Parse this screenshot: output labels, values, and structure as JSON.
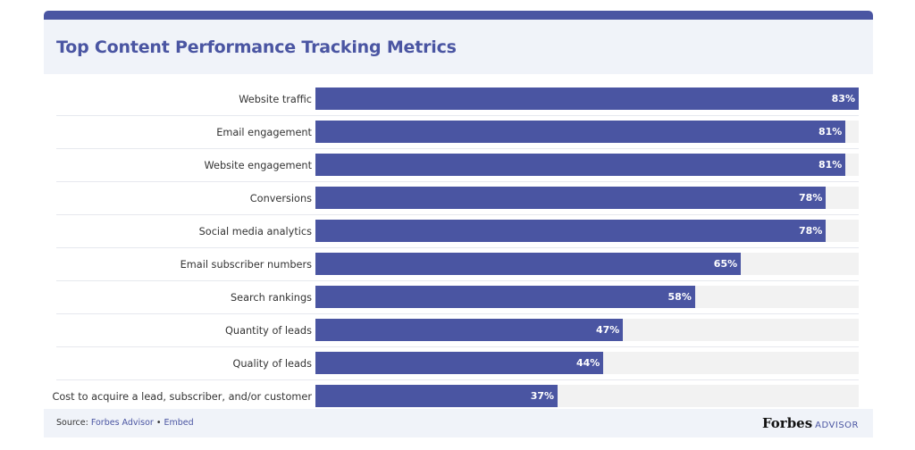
{
  "header": {
    "title": "Top Content Performance Tracking Metrics"
  },
  "colors": {
    "bar": "#4a55a2",
    "track": "#f2f2f2",
    "header_bg": "#f0f3f9",
    "title": "#4a55a2"
  },
  "chart_data": {
    "type": "bar",
    "orientation": "horizontal",
    "title": "Top Content Performance Tracking Metrics",
    "xlim": [
      0,
      83
    ],
    "categories": [
      "Website traffic",
      "Email engagement",
      "Website engagement",
      "Conversions",
      "Social media analytics",
      "Email subscriber numbers",
      "Search rankings",
      "Quantity of leads",
      "Quality of leads",
      "Cost to acquire a lead, subscriber, and/or customer"
    ],
    "values": [
      83,
      81,
      81,
      78,
      78,
      65,
      58,
      47,
      44,
      37
    ],
    "value_labels": [
      "83%",
      "81%",
      "81%",
      "78%",
      "78%",
      "65%",
      "58%",
      "47%",
      "44%",
      "37%"
    ]
  },
  "footer": {
    "source_prefix": "Source: ",
    "source_name": "Forbes Advisor",
    "separator": " • ",
    "embed": "Embed",
    "brand_name": "Forbes",
    "brand_suffix": "ADVISOR"
  }
}
